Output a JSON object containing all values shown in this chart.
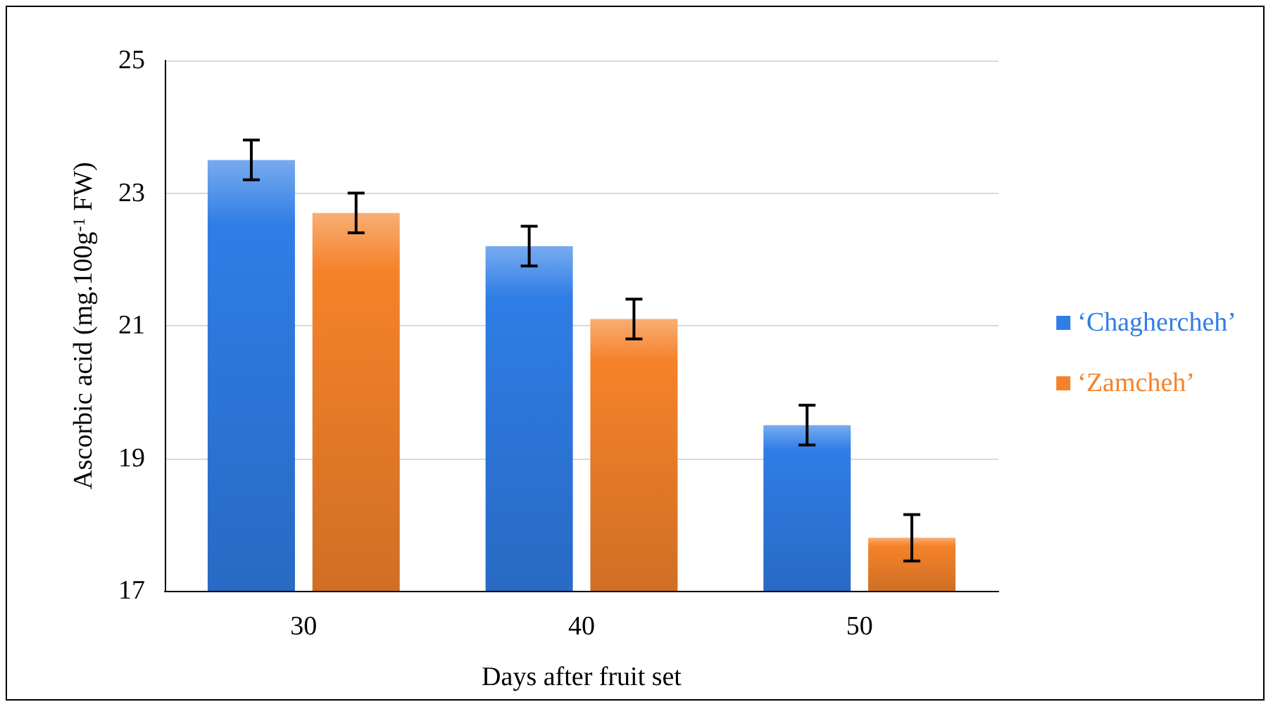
{
  "chart_data": {
    "type": "bar",
    "xlabel": "Days after fruit set",
    "ylabel": "Ascorbic acid (mg.100g$^{-1}$ FW)",
    "categories": [
      "30",
      "40",
      "50"
    ],
    "series": [
      {
        "name": "‘Chaghercheh’",
        "color": "#2f7de6",
        "values": [
          23.5,
          22.2,
          19.5
        ],
        "errors": [
          0.3,
          0.3,
          0.3
        ]
      },
      {
        "name": "‘Zamcheh’",
        "color": "#f5822a",
        "values": [
          22.7,
          21.1,
          17.8
        ],
        "errors": [
          0.3,
          0.3,
          0.35
        ]
      }
    ],
    "ylim": [
      17,
      25
    ],
    "yticks": [
      17,
      19,
      21,
      23,
      25
    ],
    "grid": "y",
    "legend": "right"
  }
}
